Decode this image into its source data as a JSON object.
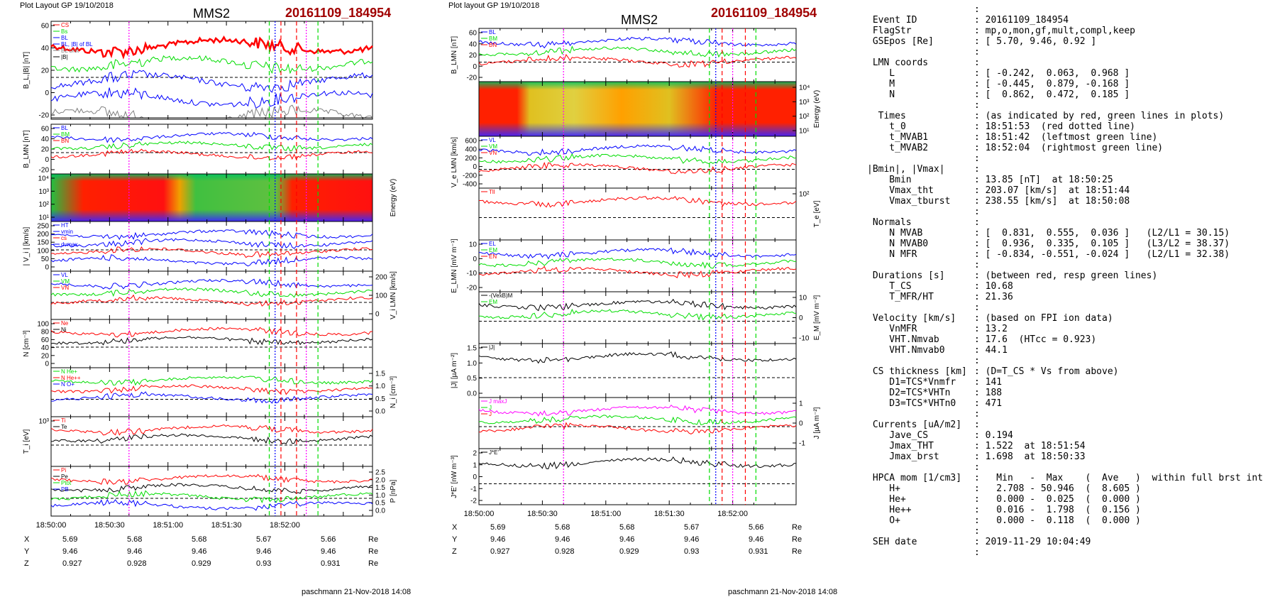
{
  "left_column": {
    "header_left": "Plot Layout GP 19/10/2018",
    "spacecraft": "MMS2",
    "event_title": "20161109_184954",
    "footer": "paschmann 21-Nov-2018 14:08"
  },
  "middle_column": {
    "header_left": "Plot layout GP 19/10/2018",
    "spacecraft": "MMS2",
    "event_title": "20161109_184954",
    "footer": "paschmann 21-Nov-2018 14:08"
  },
  "colors": {
    "blue": "#0000ff",
    "green": "#00dd00",
    "red": "#ff0000",
    "black": "#000000",
    "gray": "#808080",
    "magenta": "#ff00ff",
    "title_red": "#a00000"
  },
  "chart_data": [
    {
      "id": "left",
      "type": "line",
      "x_ticks": [
        "18:50:00",
        "18:50:30",
        "18:51:00",
        "18:51:30",
        "18:52:00"
      ],
      "x_range_sec": [
        0,
        165
      ],
      "marker_lines": [
        {
          "t": 40,
          "color": "magenta",
          "style": "dotted"
        },
        {
          "t": 112,
          "color": "green",
          "style": "dashed"
        },
        {
          "t": 115,
          "color": "blue",
          "style": "dotted"
        },
        {
          "t": 118,
          "color": "red",
          "style": "dashed"
        },
        {
          "t": 126,
          "color": "red",
          "style": "dashed"
        },
        {
          "t": 131,
          "color": "magenta",
          "style": "dotted"
        },
        {
          "t": 137,
          "color": "green",
          "style": "dashed"
        }
      ],
      "panels": [
        {
          "ylabel": "B_L,|B| [nT]",
          "ylim": [
            -25,
            65
          ],
          "yticks": [
            "60",
            "40",
            "20",
            "0",
            "-20"
          ],
          "legend": [
            "CS",
            "Bs",
            "BL",
            "BL, |B| of BL",
            "BL brst",
            "|B|"
          ],
          "legend_colors": [
            "red",
            "green",
            "blue",
            "blue",
            "gray",
            "black"
          ]
        },
        {
          "ylabel": "B_LMN [nT]",
          "ylim": [
            -30,
            70
          ],
          "yticks": [
            "60",
            "40",
            "20",
            "0",
            "-20"
          ],
          "legend": [
            "BL",
            "BM",
            "BN"
          ],
          "legend_colors": [
            "blue",
            "green",
            "red"
          ]
        },
        {
          "ylabel": "Energy (eV)",
          "spectrogram": true,
          "yticks": [
            "10⁴",
            "10³",
            "10²",
            "10¹"
          ]
        },
        {
          "ylabel": "| V_i | [km/s]",
          "ylim": [
            0,
            250
          ],
          "yticks": [
            "250",
            "200",
            "150",
            "100",
            "50",
            "0"
          ],
          "legend": [
            "HT",
            "vmin",
            "cs",
            "dvmax"
          ],
          "legend_colors": [
            "blue",
            "blue",
            "red",
            "blue"
          ]
        },
        {
          "ylabel": "V_i LMN [km/s]",
          "ylim": [
            -50,
            230
          ],
          "yticks_right": [
            "200",
            "100",
            "0"
          ],
          "legend": [
            "VL",
            "VM",
            "VN"
          ],
          "legend_colors": [
            "blue",
            "green",
            "red"
          ]
        },
        {
          "ylabel": "N [cm⁻³]",
          "ylim": [
            0,
            105
          ],
          "yticks": [
            "100",
            "80",
            "60",
            "40",
            "20",
            "0"
          ],
          "legend": [
            "Ne",
            "Ni"
          ],
          "legend_colors": [
            "red",
            "black"
          ]
        },
        {
          "ylabel": "N_i [cm⁻³]",
          "ylim": [
            0,
            1.7
          ],
          "yticks_right": [
            "1.5",
            "1.0",
            "0.5",
            "0.0"
          ],
          "legend": [
            "N He+",
            "N He++",
            "N O+"
          ],
          "legend_colors": [
            "green",
            "red",
            "blue"
          ]
        },
        {
          "ylabel": "T_i [eV]",
          "log": true,
          "yticks": [
            "10³"
          ],
          "legend": [
            "Ti",
            "Te"
          ],
          "legend_colors": [
            "red",
            "black"
          ]
        },
        {
          "ylabel": "P [nPa]",
          "ylim": [
            0,
            2.6
          ],
          "yticks_right": [
            "2.5",
            "2.0",
            "1.5",
            "1.0",
            "0.5",
            "0.0"
          ],
          "legend": [
            "Pi",
            "Pe",
            "Ptot",
            "PB"
          ],
          "legend_colors": [
            "red",
            "black",
            "green",
            "blue"
          ]
        }
      ],
      "position_rows": [
        {
          "label": "X",
          "values": [
            "5.69",
            "5.68",
            "5.68",
            "5.67",
            "5.66"
          ],
          "unit": "Re"
        },
        {
          "label": "Y",
          "values": [
            "9.46",
            "9.46",
            "9.46",
            "9.46",
            "9.46"
          ],
          "unit": "Re"
        },
        {
          "label": "Z",
          "values": [
            "0.927",
            "0.928",
            "0.929",
            "0.93",
            "0.931"
          ],
          "unit": "Re"
        }
      ]
    },
    {
      "id": "middle",
      "type": "line",
      "x_ticks": [
        "18:50:00",
        "18:50:30",
        "18:51:00",
        "18:51:30",
        "18:52:00"
      ],
      "x_range_sec": [
        0,
        150
      ],
      "marker_lines": [
        {
          "t": 40,
          "color": "magenta",
          "style": "dotted"
        },
        {
          "t": 109,
          "color": "green",
          "style": "dashed"
        },
        {
          "t": 112,
          "color": "blue",
          "style": "dotted"
        },
        {
          "t": 115,
          "color": "red",
          "style": "dashed"
        },
        {
          "t": 120,
          "color": "magenta",
          "style": "dotted"
        },
        {
          "t": 126,
          "color": "red",
          "style": "dashed"
        },
        {
          "t": 131,
          "color": "green",
          "style": "dashed"
        }
      ],
      "panels": [
        {
          "ylabel": "B_LMN [nT]",
          "ylim": [
            -30,
            70
          ],
          "yticks": [
            "60",
            "40",
            "20",
            "0",
            "-20"
          ],
          "legend": [
            "BL",
            "BM",
            "BN"
          ],
          "legend_colors": [
            "blue",
            "green",
            "red"
          ]
        },
        {
          "ylabel": "Energy (eV)",
          "spectrogram": true,
          "yticks_right": [
            "10⁴",
            "10³",
            "10²",
            "10¹"
          ]
        },
        {
          "ylabel": "V_e LMN [km/s]",
          "ylim": [
            -450,
            700
          ],
          "yticks": [
            "600",
            "400",
            "200",
            "0",
            "-200",
            "-400"
          ],
          "legend": [
            "VL",
            "VM",
            "VN"
          ],
          "legend_colors": [
            "blue",
            "green",
            "red"
          ]
        },
        {
          "ylabel": "T_e [eV]",
          "log": true,
          "yticks_right": [
            "10²"
          ],
          "legend": [
            "Tll"
          ],
          "legend_colors": [
            "red"
          ]
        },
        {
          "ylabel": "E_LMN [mV m⁻¹]",
          "ylim": [
            -22,
            15
          ],
          "yticks": [
            "10",
            "0",
            "-10",
            "-20"
          ],
          "legend": [
            "EL",
            "EM",
            "EN"
          ],
          "legend_colors": [
            "blue",
            "green",
            "red"
          ]
        },
        {
          "ylabel": "E_M [mV m⁻²]",
          "ylim": [
            -15,
            15
          ],
          "yticks_right": [
            "10",
            "0",
            "-10"
          ],
          "legend": [
            "-(VexB)M",
            "EM"
          ],
          "legend_colors": [
            "black",
            "green"
          ]
        },
        {
          "ylabel": "|J| [µA m⁻²]",
          "ylim": [
            0,
            1.6
          ],
          "yticks": [
            "1.5",
            "1.0",
            "0.5",
            "0.0"
          ],
          "legend": [
            "|J|"
          ],
          "legend_colors": [
            "black"
          ]
        },
        {
          "ylabel": "J [µA m⁻²]",
          "ylim": [
            -1.6,
            1.6
          ],
          "yticks_right": [
            "1",
            "0",
            "-1"
          ],
          "legend": [
            "J maxJ",
            "J",
            "J"
          ],
          "legend_colors": [
            "magenta",
            "green",
            "red"
          ]
        },
        {
          "ylabel": "J*E' [nW m⁻³]",
          "ylim": [
            -2.2,
            2.2
          ],
          "yticks": [
            "2",
            "1",
            "0",
            "-1",
            "-2"
          ],
          "legend": [
            "J*E'"
          ],
          "legend_colors": [
            "black"
          ]
        }
      ],
      "position_rows": [
        {
          "label": "X",
          "values": [
            "5.69",
            "5.68",
            "5.68",
            "5.67",
            "5.66"
          ],
          "unit": "Re"
        },
        {
          "label": "Y",
          "values": [
            "9.46",
            "9.46",
            "9.46",
            "9.46",
            "9.46"
          ],
          "unit": "Re"
        },
        {
          "label": "Z",
          "values": [
            "0.927",
            "0.928",
            "0.929",
            "0.93",
            "0.931"
          ],
          "unit": "Re"
        }
      ]
    }
  ],
  "info_panel": {
    "rows": [
      {
        "k": "",
        "v": ":"
      },
      {
        "k": " Event ID",
        "v": ": 20161109_184954"
      },
      {
        "k": " FlagStr",
        "v": ": mp,o,mon,gf,mult,compl,keep"
      },
      {
        "k": " GSEpos [Re]",
        "v": ": [ 5.70, 9.46, 0.92 ]"
      },
      {
        "k": "",
        "v": ":"
      },
      {
        "k": " LMN coords",
        "v": ":"
      },
      {
        "k": "    L",
        "v": ": [ -0.242,  0.063,  0.968 ]"
      },
      {
        "k": "    M",
        "v": ": [ -0.445,  0.879, -0.168 ]"
      },
      {
        "k": "    N",
        "v": ": [  0.862,  0.472,  0.185 ]"
      },
      {
        "k": "",
        "v": ":"
      },
      {
        "k": "  Times",
        "v": ": (as indicated by red, green lines in plots)"
      },
      {
        "k": "    t_0",
        "v": ": 18:51:53  (red dotted line)"
      },
      {
        "k": "    t_MVAB1",
        "v": ": 18:51:42  (leftmost green line)"
      },
      {
        "k": "    t_MVAB2",
        "v": ": 18:52:04  (rightmost green line)"
      },
      {
        "k": "",
        "v": ":"
      },
      {
        "k": "|Bmin|, |Vmax|",
        "v": ":"
      },
      {
        "k": "    Bmin",
        "v": ": 13.85 [nT]  at 18:50:25"
      },
      {
        "k": "    Vmax_tht",
        "v": ": 203.07 [km/s]  at 18:51:44"
      },
      {
        "k": "    Vmax_tburst",
        "v": ": 238.55 [km/s]  at 18:50:08"
      },
      {
        "k": "",
        "v": ":"
      },
      {
        "k": " Normals",
        "v": ":"
      },
      {
        "k": "    N MVAB",
        "v": ": [  0.831,  0.555,  0.036 ]   (L2/L1 = 30.15)"
      },
      {
        "k": "    N MVAB0",
        "v": ": [  0.936,  0.335,  0.105 ]   (L3/L2 = 38.37)"
      },
      {
        "k": "    N MFR",
        "v": ": [ -0.834, -0.551, -0.024 ]   (L2/L1 = 32.38)"
      },
      {
        "k": "",
        "v": ":"
      },
      {
        "k": " Durations [s]",
        "v": ": (between red, resp green lines)"
      },
      {
        "k": "    T_CS",
        "v": ": 10.68"
      },
      {
        "k": "    T_MFR/HT",
        "v": ": 21.36"
      },
      {
        "k": "",
        "v": ":"
      },
      {
        "k": " Velocity [km/s]",
        "v": ": (based on FPI ion data)"
      },
      {
        "k": "    VnMFR",
        "v": ": 13.2"
      },
      {
        "k": "    VHT.Nmvab",
        "v": ": 17.6  (HTcc = 0.923)"
      },
      {
        "k": "    VHT.Nmvab0",
        "v": ": 44.1"
      },
      {
        "k": "",
        "v": ":"
      },
      {
        "k": " CS thickness [km]",
        "v": ": (D=T_CS * Vs from above)"
      },
      {
        "k": "    D1=TCS*Vnmfr",
        "v": ": 141"
      },
      {
        "k": "    D2=TCS*VHTn",
        "v": ": 188"
      },
      {
        "k": "    D3=TCS*VHTn0",
        "v": ": 471"
      },
      {
        "k": "",
        "v": ":"
      },
      {
        "k": " Currents [uA/m2]",
        "v": ":"
      },
      {
        "k": "    Jave_CS",
        "v": ": 0.194"
      },
      {
        "k": "    Jmax_THT",
        "v": ": 1.522  at 18:51:54"
      },
      {
        "k": "    Jmax_brst",
        "v": ": 1.698  at 18:50:33"
      },
      {
        "k": "",
        "v": ":"
      },
      {
        "k": " HPCA mom [1/cm3]",
        "v": ":   Min   -  Max    (  Ave   )  within full brst int"
      },
      {
        "k": "    H+",
        "v": ":   2.708 - 50.946  (  8.605 )"
      },
      {
        "k": "    He+",
        "v": ":   0.000 -  0.025  (  0.000 )"
      },
      {
        "k": "    He++",
        "v": ":   0.016 -  1.798  (  0.156 )"
      },
      {
        "k": "    O+",
        "v": ":   0.000 -  0.118  (  0.000 )"
      },
      {
        "k": "",
        "v": ":"
      },
      {
        "k": " SEH date",
        "v": ": 2019-11-29 10:04:49"
      },
      {
        "k": "",
        "v": ":"
      }
    ]
  }
}
